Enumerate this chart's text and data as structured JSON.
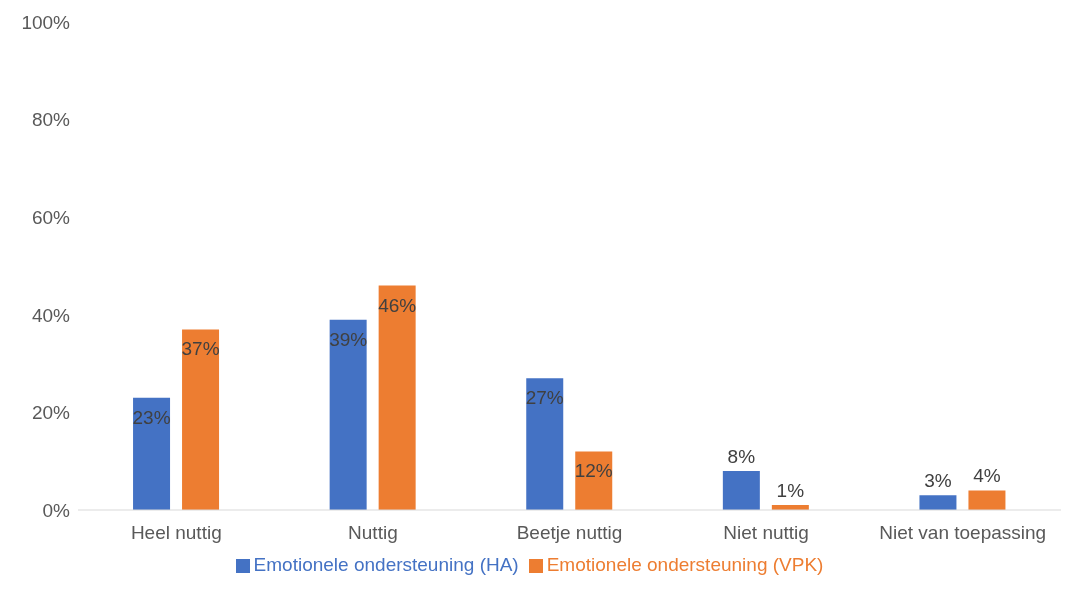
{
  "chart_data": {
    "type": "bar",
    "categories": [
      "Heel nuttig",
      "Nuttig",
      "Beetje nuttig",
      "Niet nuttig",
      "Niet van toepassing"
    ],
    "series": [
      {
        "name": "Emotionele ondersteuning (HA)",
        "color": "#4472c4",
        "values": [
          23,
          39,
          27,
          8,
          3
        ],
        "value_labels": [
          "23%",
          "39%",
          "27%",
          "8%",
          "3%"
        ]
      },
      {
        "name": "Emotionele ondersteuning (VPK)",
        "color": "#ed7d31",
        "values": [
          37,
          46,
          12,
          1,
          4
        ],
        "value_labels": [
          "37%",
          "46%",
          "12%",
          "1%",
          "4%"
        ]
      }
    ],
    "ylim": [
      0,
      100
    ],
    "yticks": [
      {
        "value": 0,
        "label": "0%"
      },
      {
        "value": 20,
        "label": "20%"
      },
      {
        "value": 40,
        "label": "40%"
      },
      {
        "value": 60,
        "label": "60%"
      },
      {
        "value": 80,
        "label": "80%"
      },
      {
        "value": 100,
        "label": "100%"
      }
    ],
    "grid": false,
    "legend": "bottom"
  }
}
